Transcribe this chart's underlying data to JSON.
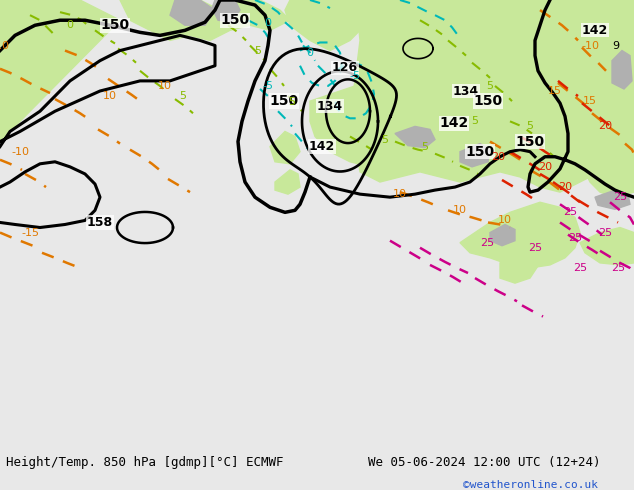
{
  "title_left": "Height/Temp. 850 hPa [gdmp][°C] ECMWF",
  "title_right": "We 05-06-2024 12:00 UTC (12+24)",
  "credit": "©weatheronline.co.uk",
  "fig_width": 6.34,
  "fig_height": 4.9,
  "dpi": 100,
  "bg_ocean": "#e8e8e8",
  "bg_land_green": "#c8e89a",
  "bg_land_dark_green": "#a0d060",
  "bg_gray": "#b0b0b0",
  "bg_white": "#f0f0f0",
  "bottom_bar_color": "#e8e8e8",
  "bottom_text_color": "#000000",
  "credit_color": "#2255cc",
  "col_black": "#000000",
  "col_cyan": "#00b8b8",
  "col_orange": "#e07800",
  "col_lime": "#88bb00",
  "col_red": "#dd2200",
  "col_magenta": "#cc0088",
  "col_gray": "#888888"
}
